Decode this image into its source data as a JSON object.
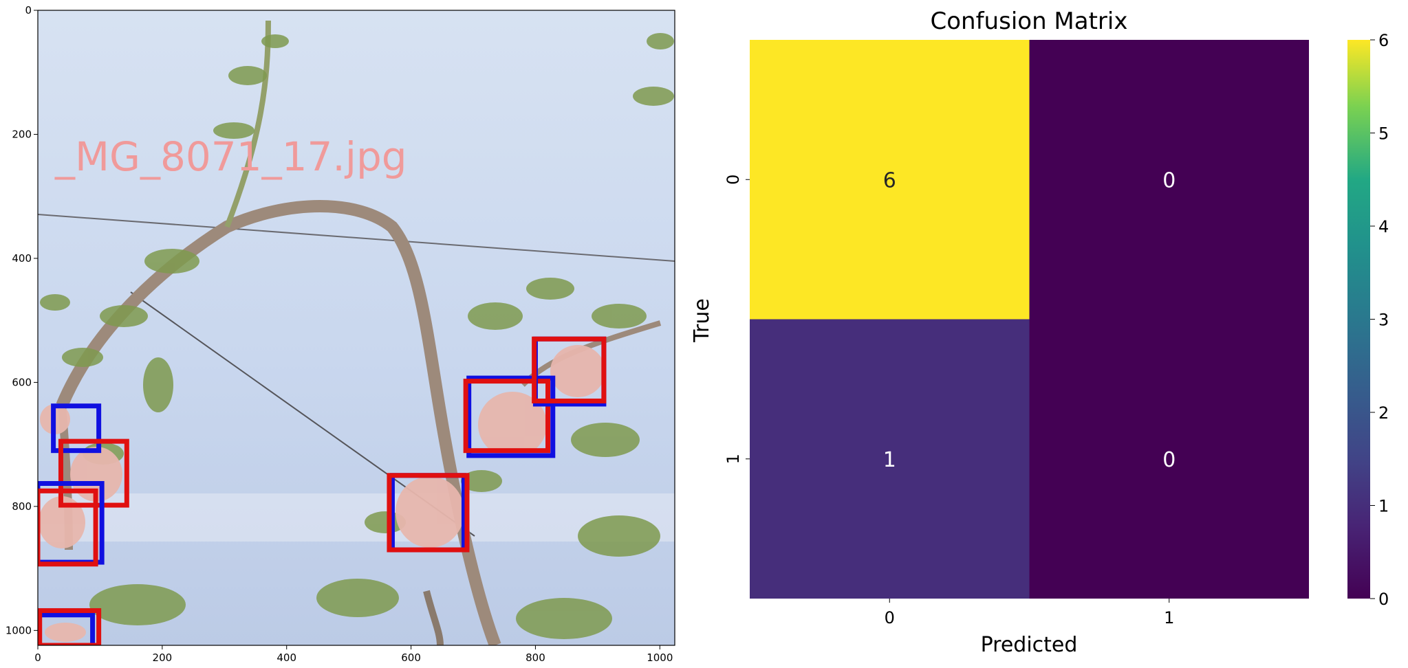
{
  "chart_data": [
    {
      "type": "image",
      "description_free": true,
      "overlay_text": "_MG_8071_17.jpg",
      "xlim": [
        0,
        1024
      ],
      "ylim": [
        1024,
        0
      ],
      "xticks": [
        0,
        200,
        400,
        600,
        800,
        1000
      ],
      "yticks": [
        0,
        200,
        400,
        600,
        800,
        1000
      ],
      "boxes": [
        {
          "color": "#1010e0",
          "x1": 25,
          "y1": 638,
          "x2": 98,
          "y2": 710
        },
        {
          "color": "#e01010",
          "x1": 37,
          "y1": 695,
          "x2": 143,
          "y2": 798
        },
        {
          "color": "#1010e0",
          "x1": 0,
          "y1": 763,
          "x2": 103,
          "y2": 890
        },
        {
          "color": "#e01010",
          "x1": 0,
          "y1": 775,
          "x2": 93,
          "y2": 893
        },
        {
          "color": "#1010e0",
          "x1": 0,
          "y1": 975,
          "x2": 88,
          "y2": 1024
        },
        {
          "color": "#e01010",
          "x1": 3,
          "y1": 968,
          "x2": 98,
          "y2": 1024
        },
        {
          "color": "#1010e0",
          "x1": 570,
          "y1": 750,
          "x2": 685,
          "y2": 870
        },
        {
          "color": "#e01010",
          "x1": 565,
          "y1": 750,
          "x2": 690,
          "y2": 870
        },
        {
          "color": "#1010e0",
          "x1": 693,
          "y1": 593,
          "x2": 828,
          "y2": 718
        },
        {
          "color": "#e01010",
          "x1": 688,
          "y1": 598,
          "x2": 820,
          "y2": 710
        },
        {
          "color": "#1010e0",
          "x1": 800,
          "y1": 530,
          "x2": 910,
          "y2": 635
        },
        {
          "color": "#e01010",
          "x1": 798,
          "y1": 530,
          "x2": 910,
          "y2": 630
        }
      ]
    },
    {
      "type": "heatmap",
      "title": "Confusion Matrix",
      "xlabel": "Predicted",
      "ylabel": "True",
      "x_categories": [
        "0",
        "1"
      ],
      "y_categories": [
        "0",
        "1"
      ],
      "values": [
        [
          6,
          0
        ],
        [
          1,
          0
        ]
      ],
      "colormap": "viridis",
      "colorbar_range": [
        0,
        6
      ],
      "colorbar_ticks": [
        0,
        1,
        2,
        3,
        4,
        5,
        6
      ]
    }
  ]
}
